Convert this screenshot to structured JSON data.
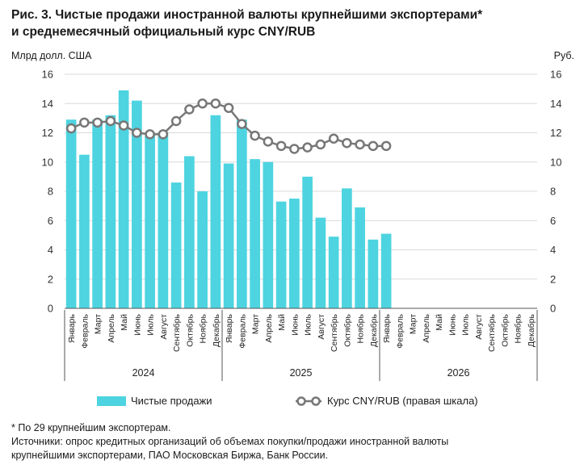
{
  "title_line1": "Рис. 3. Чистые продажи иностранной валюты крупнейшими экспортерами*",
  "title_line2": "и среднемесячный официальный курс CNY/RUB",
  "footnote": "* По 29 крупнейшим экспортерам.",
  "sources_line1": "Источники: опрос кредитных организаций об объемах покупки/продажи иностранной валюты",
  "sources_line2": "крупнейшими экспортерами, ПАО Московская Биржа, Банк России.",
  "colors": {
    "bar": "#4dd4e0",
    "line": "#777777",
    "marker_fill": "#ffffff",
    "grid": "#d9d9d9",
    "axis": "#555555"
  },
  "chart_data": {
    "type": "bar",
    "title": "Чистые продажи иностранной валюты крупнейшими экспортерами* и среднемесячный официальный курс CNY/RUB",
    "ylabel_left": "Млрд долл. США",
    "ylabel_right": "Руб.",
    "ylim_left": [
      0,
      16
    ],
    "ylim_right": [
      0,
      16
    ],
    "yticks": [
      0,
      2,
      4,
      6,
      8,
      10,
      12,
      14,
      16
    ],
    "months": [
      "Январь",
      "Февраль",
      "Март",
      "Апрель",
      "Май",
      "Июнь",
      "Июль",
      "Август",
      "Сентябрь",
      "Октябрь",
      "Ноябрь",
      "Декабрь"
    ],
    "years": [
      "2024",
      "2025",
      "2026"
    ],
    "series": [
      {
        "name": "Чистые продажи",
        "type": "bar",
        "axis": "left",
        "values": [
          12.9,
          10.5,
          12.9,
          13.2,
          14.9,
          14.2,
          11.8,
          12.0,
          8.6,
          10.4,
          8.0,
          13.2,
          9.9,
          12.9,
          10.2,
          10.0,
          7.3,
          7.5,
          9.0,
          6.2,
          4.9,
          8.2,
          6.9,
          4.7,
          5.1
        ]
      },
      {
        "name": "Курс CNY/RUB (правая шкала)",
        "type": "line",
        "axis": "right",
        "values": [
          12.3,
          12.7,
          12.7,
          12.8,
          12.5,
          12.0,
          11.9,
          11.9,
          12.8,
          13.6,
          14.0,
          14.0,
          13.7,
          12.6,
          11.8,
          11.4,
          11.1,
          10.9,
          11.0,
          11.2,
          11.6,
          11.3,
          11.2,
          11.1,
          11.1
        ]
      }
    ]
  }
}
